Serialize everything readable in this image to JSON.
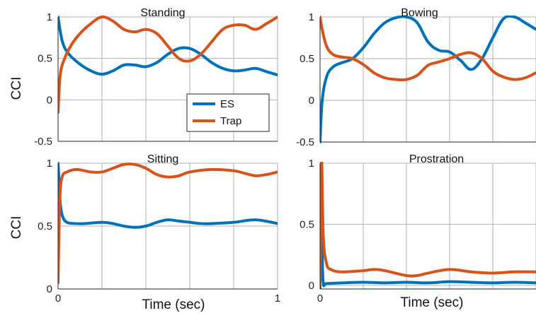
{
  "figure": {
    "ylabel": "CCI",
    "xlabel": "Time (sec)"
  },
  "legend": {
    "entries": [
      {
        "label": "ES",
        "color": "#1f77b4"
      },
      {
        "label": "Trap",
        "color": "#d95319"
      }
    ],
    "placement": "inside lower-right of Standing panel"
  },
  "colors": {
    "ES": "#0072bd",
    "Trap": "#d95319",
    "grid": "#b0b0b0",
    "axis": "#262626"
  },
  "chart_data": [
    {
      "type": "line",
      "title": "Standing",
      "ylabel": "CCI",
      "xlim": [
        0,
        1
      ],
      "ylim": [
        -0.5,
        1
      ],
      "yticks": [
        -0.5,
        0,
        0.5,
        1
      ],
      "ytick_labels": [
        "-0.5",
        "0",
        "0.5",
        "1"
      ],
      "xticks": [
        0,
        0.2,
        0.4,
        0.6,
        0.8,
        1
      ],
      "xtick_labels": [],
      "grid": true,
      "legend": true,
      "series": [
        {
          "name": "ES",
          "x": [
            0,
            0.02,
            0.05,
            0.1,
            0.15,
            0.2,
            0.25,
            0.3,
            0.35,
            0.4,
            0.45,
            0.5,
            0.55,
            0.6,
            0.65,
            0.7,
            0.75,
            0.8,
            0.85,
            0.9,
            0.95,
            1.0
          ],
          "y": [
            1.0,
            0.7,
            0.55,
            0.43,
            0.35,
            0.31,
            0.35,
            0.42,
            0.42,
            0.4,
            0.45,
            0.55,
            0.62,
            0.62,
            0.55,
            0.45,
            0.38,
            0.35,
            0.36,
            0.38,
            0.34,
            0.3
          ]
        },
        {
          "name": "Trap",
          "x": [
            0,
            0.01,
            0.03,
            0.06,
            0.1,
            0.15,
            0.2,
            0.25,
            0.3,
            0.35,
            0.4,
            0.45,
            0.5,
            0.55,
            0.6,
            0.65,
            0.7,
            0.75,
            0.8,
            0.85,
            0.9,
            0.95,
            1.0
          ],
          "y": [
            -0.15,
            0.3,
            0.5,
            0.66,
            0.8,
            0.92,
            1.0,
            0.95,
            0.85,
            0.82,
            0.85,
            0.8,
            0.65,
            0.5,
            0.47,
            0.55,
            0.7,
            0.85,
            0.9,
            0.9,
            0.85,
            0.92,
            1.0
          ]
        }
      ]
    },
    {
      "type": "line",
      "title": "Bowing",
      "xlim": [
        0,
        1
      ],
      "ylim": [
        -0.5,
        1
      ],
      "yticks": [
        -0.5,
        0,
        0.5,
        1
      ],
      "ytick_labels": [
        "-0.5",
        "0",
        "0.5",
        "1"
      ],
      "xticks": [
        0,
        0.2,
        0.4,
        0.6,
        0.8,
        1
      ],
      "xtick_labels": [],
      "grid": true,
      "series": [
        {
          "name": "ES",
          "x": [
            0,
            0.01,
            0.03,
            0.06,
            0.1,
            0.15,
            0.2,
            0.25,
            0.3,
            0.35,
            0.4,
            0.45,
            0.5,
            0.55,
            0.6,
            0.65,
            0.7,
            0.75,
            0.8,
            0.85,
            0.9,
            0.95,
            1.0
          ],
          "y": [
            -0.5,
            0.0,
            0.28,
            0.4,
            0.45,
            0.5,
            0.63,
            0.8,
            0.93,
            0.99,
            1.0,
            0.93,
            0.7,
            0.6,
            0.58,
            0.48,
            0.37,
            0.5,
            0.75,
            0.98,
            1.0,
            0.93,
            0.85
          ]
        },
        {
          "name": "Trap",
          "x": [
            0,
            0.01,
            0.03,
            0.06,
            0.1,
            0.15,
            0.2,
            0.25,
            0.3,
            0.35,
            0.4,
            0.45,
            0.5,
            0.55,
            0.6,
            0.65,
            0.7,
            0.75,
            0.8,
            0.85,
            0.9,
            0.95,
            1.0
          ],
          "y": [
            1.0,
            0.85,
            0.65,
            0.55,
            0.52,
            0.5,
            0.43,
            0.33,
            0.27,
            0.25,
            0.25,
            0.3,
            0.42,
            0.46,
            0.5,
            0.55,
            0.57,
            0.5,
            0.35,
            0.28,
            0.25,
            0.27,
            0.33
          ]
        }
      ]
    },
    {
      "type": "line",
      "title": "Sitting",
      "ylabel": "CCI",
      "xlabel": "Time (sec)",
      "xlim": [
        0,
        1
      ],
      "ylim": [
        0,
        1
      ],
      "yticks": [
        0,
        0.5,
        1
      ],
      "ytick_labels": [
        "0",
        "0.5",
        "1"
      ],
      "xticks": [
        0,
        0.2,
        0.4,
        0.6,
        0.8,
        1
      ],
      "xtick_labels": [
        "0",
        "",
        "",
        "",
        "",
        "1"
      ],
      "grid": true,
      "series": [
        {
          "name": "ES",
          "x": [
            0,
            0.005,
            0.01,
            0.02,
            0.04,
            0.08,
            0.12,
            0.2,
            0.25,
            0.3,
            0.35,
            0.4,
            0.45,
            0.5,
            0.55,
            0.6,
            0.65,
            0.7,
            0.8,
            0.9,
            1.0
          ],
          "y": [
            1.0,
            0.85,
            0.68,
            0.58,
            0.53,
            0.52,
            0.52,
            0.53,
            0.52,
            0.5,
            0.49,
            0.5,
            0.53,
            0.55,
            0.54,
            0.53,
            0.52,
            0.52,
            0.53,
            0.55,
            0.52
          ]
        },
        {
          "name": "Trap",
          "x": [
            0,
            0.005,
            0.01,
            0.02,
            0.04,
            0.08,
            0.12,
            0.15,
            0.2,
            0.25,
            0.3,
            0.35,
            0.4,
            0.45,
            0.5,
            0.55,
            0.6,
            0.7,
            0.8,
            0.85,
            0.9,
            0.95,
            1.0
          ],
          "y": [
            0.05,
            0.5,
            0.78,
            0.9,
            0.93,
            0.95,
            0.94,
            0.93,
            0.93,
            0.96,
            0.99,
            0.99,
            0.96,
            0.91,
            0.89,
            0.9,
            0.93,
            0.95,
            0.94,
            0.92,
            0.9,
            0.91,
            0.93
          ]
        }
      ]
    },
    {
      "type": "line",
      "title": "Prostration",
      "xlabel": "Time (sec)",
      "xlim": [
        0,
        1
      ],
      "ylim": [
        -0.03,
        1
      ],
      "yticks": [
        0,
        0.5,
        1
      ],
      "ytick_labels": [
        "0",
        "0.5",
        "1"
      ],
      "xticks": [
        0,
        0.2,
        0.4,
        0.6,
        0.8,
        1
      ],
      "xtick_labels": [
        "0",
        "",
        "",
        "",
        "",
        ""
      ],
      "grid": true,
      "series": [
        {
          "name": "ES",
          "x": [
            0,
            0.003,
            0.006,
            0.01,
            0.015,
            0.03,
            0.1,
            0.2,
            0.3,
            0.4,
            0.5,
            0.6,
            0.7,
            0.8,
            0.9,
            1.0
          ],
          "y": [
            -0.02,
            0.3,
            1.0,
            0.3,
            0.02,
            0.015,
            0.02,
            0.025,
            0.02,
            0.025,
            0.02,
            0.03,
            0.025,
            0.02,
            0.025,
            0.02
          ]
        },
        {
          "name": "Trap",
          "x": [
            0,
            0.004,
            0.008,
            0.015,
            0.03,
            0.05,
            0.1,
            0.2,
            0.25,
            0.3,
            0.4,
            0.45,
            0.5,
            0.6,
            0.7,
            0.8,
            0.9,
            1.0
          ],
          "y": [
            0.0,
            0.8,
            1.0,
            0.4,
            0.18,
            0.13,
            0.11,
            0.12,
            0.13,
            0.12,
            0.08,
            0.08,
            0.1,
            0.13,
            0.11,
            0.1,
            0.11,
            0.11
          ]
        }
      ]
    }
  ]
}
